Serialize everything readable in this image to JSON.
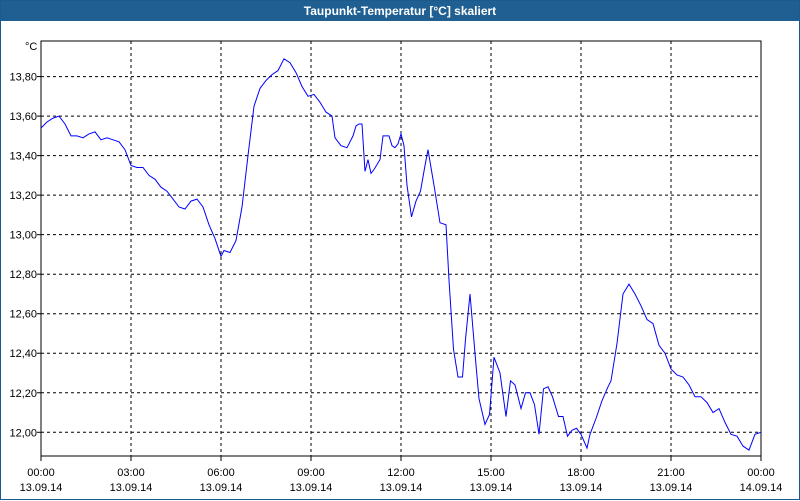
{
  "window": {
    "title": "Taupunkt-Temperatur [°C] skaliert"
  },
  "chart_data": {
    "type": "line",
    "title": "Taupunkt-Temperatur [°C] skaliert",
    "ylabel": "°C",
    "xlabel": "",
    "ylim": [
      11.88,
      13.98
    ],
    "xlim_hours": [
      0,
      24
    ],
    "grid": true,
    "line_color": "#0000ff",
    "y_ticks": [
      "12,00",
      "12,20",
      "12,40",
      "12,60",
      "12,80",
      "13,00",
      "13,20",
      "13,40",
      "13,60",
      "13,80"
    ],
    "y_tick_values": [
      12.0,
      12.2,
      12.4,
      12.6,
      12.8,
      13.0,
      13.2,
      13.4,
      13.6,
      13.8
    ],
    "x_ticks": [
      {
        "time": "00:00",
        "date": "13.09.14"
      },
      {
        "time": "03:00",
        "date": "13.09.14"
      },
      {
        "time": "06:00",
        "date": "13.09.14"
      },
      {
        "time": "09:00",
        "date": "13.09.14"
      },
      {
        "time": "12:00",
        "date": "13.09.14"
      },
      {
        "time": "15:00",
        "date": "13.09.14"
      },
      {
        "time": "18:00",
        "date": "13.09.14"
      },
      {
        "time": "21:00",
        "date": "13.09.14"
      },
      {
        "time": "00:00",
        "date": "14.09.14"
      }
    ],
    "x_tick_hours": [
      0,
      3,
      6,
      9,
      12,
      15,
      18,
      21,
      24
    ],
    "series": [
      {
        "x": [
          0.0,
          0.2,
          0.4,
          0.6,
          0.8,
          1.0,
          1.2,
          1.4,
          1.6,
          1.8,
          2.0,
          2.2,
          2.4,
          2.6,
          2.8,
          3.0,
          3.2,
          3.4,
          3.6,
          3.8,
          4.0,
          4.2,
          4.4,
          4.6,
          4.8,
          5.0,
          5.2,
          5.4,
          5.6,
          5.8,
          6.0,
          6.1,
          6.3,
          6.5,
          6.7,
          6.9,
          7.1,
          7.3,
          7.5,
          7.7,
          7.9,
          8.1,
          8.3,
          8.5,
          8.7,
          8.9,
          9.1,
          9.3,
          9.5,
          9.7,
          9.8,
          10.0,
          10.2,
          10.4,
          10.5,
          10.6,
          10.7,
          10.8,
          10.9,
          11.0,
          11.1,
          11.3,
          11.4,
          11.6,
          11.7,
          11.8,
          11.9,
          12.0,
          12.1,
          12.2,
          12.35,
          12.5,
          12.65,
          12.8,
          12.9,
          13.0,
          13.1,
          13.3,
          13.5,
          13.6,
          13.75,
          13.9,
          14.05,
          14.15,
          14.3,
          14.5,
          14.6,
          14.8,
          14.95,
          15.1,
          15.3,
          15.5,
          15.65,
          15.8,
          16.0,
          16.15,
          16.3,
          16.45,
          16.6,
          16.75,
          16.9,
          17.05,
          17.25,
          17.4,
          17.55,
          17.7,
          17.85,
          18.0,
          18.2,
          18.3,
          18.5,
          18.7,
          18.9,
          19.0,
          19.2,
          19.4,
          19.6,
          19.8,
          20.0,
          20.2,
          20.4,
          20.6,
          20.8,
          21.0,
          21.2,
          21.4,
          21.6,
          21.8,
          22.0,
          22.2,
          22.4,
          22.6,
          22.8,
          23.0,
          23.2,
          23.4,
          23.6,
          23.8,
          24.0
        ],
        "y": [
          13.54,
          13.57,
          13.59,
          13.6,
          13.56,
          13.5,
          13.5,
          13.49,
          13.51,
          13.52,
          13.48,
          13.49,
          13.48,
          13.47,
          13.43,
          13.35,
          13.34,
          13.34,
          13.3,
          13.28,
          13.24,
          13.22,
          13.18,
          13.14,
          13.13,
          13.17,
          13.18,
          13.14,
          13.05,
          12.98,
          12.89,
          12.92,
          12.91,
          12.97,
          13.14,
          13.4,
          13.65,
          13.74,
          13.78,
          13.81,
          13.83,
          13.89,
          13.87,
          13.82,
          13.75,
          13.7,
          13.71,
          13.67,
          13.62,
          13.6,
          13.49,
          13.45,
          13.44,
          13.5,
          13.55,
          13.56,
          13.56,
          13.32,
          13.38,
          13.31,
          13.33,
          13.38,
          13.5,
          13.5,
          13.45,
          13.44,
          13.46,
          13.51,
          13.45,
          13.25,
          13.09,
          13.17,
          13.22,
          13.35,
          13.43,
          13.34,
          13.25,
          13.06,
          13.05,
          12.77,
          12.42,
          12.28,
          12.28,
          12.47,
          12.7,
          12.34,
          12.17,
          12.04,
          12.09,
          12.38,
          12.3,
          12.08,
          12.26,
          12.24,
          12.12,
          12.2,
          12.2,
          12.14,
          11.99,
          12.22,
          12.23,
          12.18,
          12.08,
          12.08,
          11.98,
          12.01,
          12.02,
          11.99,
          11.92,
          11.99,
          12.07,
          12.16,
          12.23,
          12.26,
          12.45,
          12.7,
          12.75,
          12.7,
          12.64,
          12.57,
          12.55,
          12.44,
          12.4,
          12.32,
          12.29,
          12.28,
          12.24,
          12.18,
          12.18,
          12.15,
          12.1,
          12.12,
          12.05,
          11.99,
          11.98,
          11.93,
          11.91,
          11.99,
          12.0
        ]
      }
    ]
  }
}
